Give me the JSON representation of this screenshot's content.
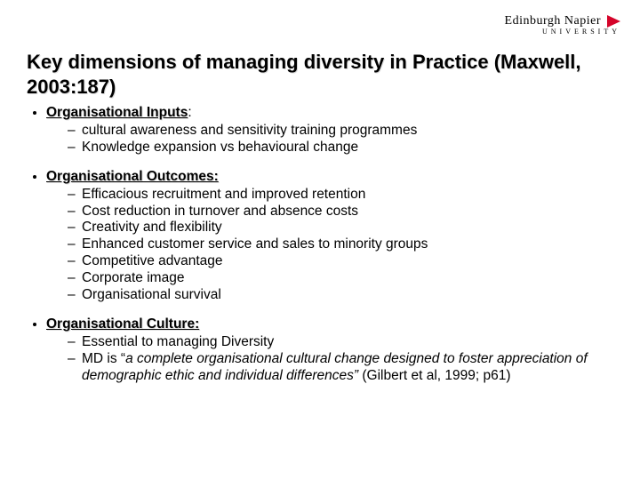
{
  "logo": {
    "line1": "Edinburgh Napier",
    "line2": "UNIVERSITY",
    "triangle_color": "#d5042a"
  },
  "title": "Key dimensions of managing diversity in Practice (Maxwell, 2003:187)",
  "sections": [
    {
      "heading": "Organisational Inputs",
      "heading_suffix": ":",
      "items": [
        "cultural awareness and sensitivity training programmes",
        "Knowledge expansion vs behavioural change"
      ]
    },
    {
      "heading": "Organisational Outcomes:",
      "heading_suffix": "",
      "items": [
        "Efficacious recruitment and improved retention",
        "Cost reduction in turnover and absence costs",
        "Creativity and flexibility",
        "Enhanced customer service and sales to minority groups",
        "Competitive advantage",
        "Corporate image",
        "Organisational survival"
      ]
    },
    {
      "heading": "Organisational Culture:",
      "heading_suffix": "",
      "items": [
        "Essential to managing Diversity"
      ],
      "quote_item": {
        "prefix": "MD is “",
        "italic": "a complete organisational cultural change designed to foster appreciation of demographic ethic and individual differences”",
        "citation": "     (Gilbert et al, 1999; p61)"
      }
    }
  ],
  "style": {
    "background_color": "#ffffff",
    "text_color": "#000000",
    "title_fontsize": 22,
    "body_fontsize": 15.5,
    "font_family": "Arial"
  }
}
